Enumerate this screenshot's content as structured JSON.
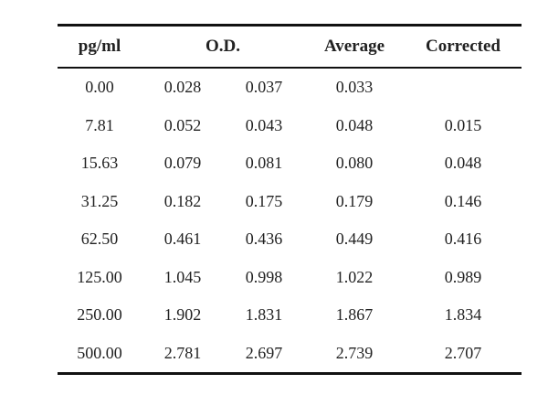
{
  "table": {
    "headers": {
      "conc": "pg/ml",
      "od": "O.D.",
      "average": "Average",
      "corrected": "Corrected"
    },
    "rows": [
      {
        "conc": "0.00",
        "od1": "0.028",
        "od2": "0.037",
        "average": "0.033",
        "corrected": ""
      },
      {
        "conc": "7.81",
        "od1": "0.052",
        "od2": "0.043",
        "average": "0.048",
        "corrected": "0.015"
      },
      {
        "conc": "15.63",
        "od1": "0.079",
        "od2": "0.081",
        "average": "0.080",
        "corrected": "0.048"
      },
      {
        "conc": "31.25",
        "od1": "0.182",
        "od2": "0.175",
        "average": "0.179",
        "corrected": "0.146"
      },
      {
        "conc": "62.50",
        "od1": "0.461",
        "od2": "0.436",
        "average": "0.449",
        "corrected": "0.416"
      },
      {
        "conc": "125.00",
        "od1": "1.045",
        "od2": "0.998",
        "average": "1.022",
        "corrected": "0.989"
      },
      {
        "conc": "250.00",
        "od1": "1.902",
        "od2": "1.831",
        "average": "1.867",
        "corrected": "1.834"
      },
      {
        "conc": "500.00",
        "od1": "2.781",
        "od2": "2.697",
        "average": "2.739",
        "corrected": "2.707"
      }
    ]
  }
}
